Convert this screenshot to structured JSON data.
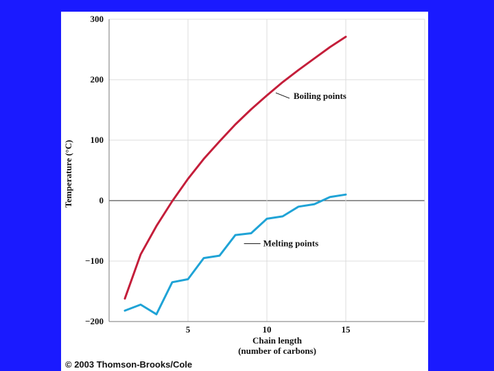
{
  "chart_data": {
    "type": "line",
    "title": "",
    "xlabel": "Chain length",
    "xlabel_sub": "(number of carbons)",
    "ylabel": "Temperature (°C)",
    "xlim": [
      0,
      20
    ],
    "ylim": [
      -200,
      300
    ],
    "x_ticks": [
      5,
      10,
      15
    ],
    "y_ticks": [
      -200,
      -100,
      0,
      100,
      200,
      300
    ],
    "y_tick_labels": [
      "−200",
      "−100",
      "0",
      "100",
      "200",
      "300"
    ],
    "grid": true,
    "series": [
      {
        "name": "Boiling points",
        "color": "#c41e3a",
        "x": [
          1,
          2,
          3,
          4,
          5,
          6,
          7,
          8,
          9,
          10,
          11,
          12,
          13,
          14,
          15
        ],
        "y": [
          -162,
          -89,
          -42,
          -1,
          36,
          69,
          98,
          126,
          151,
          174,
          196,
          216,
          235,
          254,
          271
        ]
      },
      {
        "name": "Melting points",
        "color": "#1fa3d6",
        "x": [
          1,
          2,
          3,
          4,
          5,
          6,
          7,
          8,
          9,
          10,
          11,
          12,
          13,
          14,
          15
        ],
        "y": [
          -182,
          -172,
          -188,
          -135,
          -130,
          -95,
          -91,
          -57,
          -54,
          -30,
          -26,
          -10,
          -6,
          6,
          10
        ]
      }
    ],
    "annotations": [
      {
        "text": "Boiling points",
        "series": 0,
        "at_x": 10.3
      },
      {
        "text": "Melting points",
        "series": 1,
        "at_x": 8.2
      }
    ]
  },
  "footer": {
    "copyright": "© 2003 Thomson-Brooks/Cole"
  }
}
